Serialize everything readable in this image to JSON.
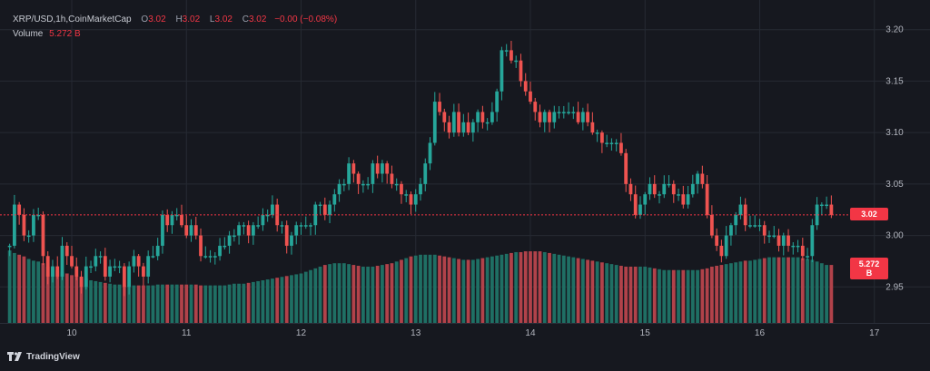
{
  "legend": {
    "symbol": "XRP/USD",
    "interval": "1h",
    "source": "CoinMarketCap",
    "open_key": "O",
    "open": "3.02",
    "high_key": "H",
    "high": "3.02",
    "low_key": "L",
    "low": "3.02",
    "close_key": "C",
    "close": "3.02",
    "change": "−0.00 (−0.08%)",
    "volume_label": "Volume",
    "volume_value": "5.272 B"
  },
  "price_tag": "3.02",
  "volume_tag": "5.272 B",
  "brand": "TradingView",
  "colors": {
    "up": "#26a69a",
    "down": "#ef5350",
    "vol_up": "#1f6f64",
    "vol_down": "#b1424a",
    "price_line": "#f23645",
    "grid": "#262a33",
    "background": "#16181f"
  },
  "chart_data": {
    "type": "candlestick",
    "title": "XRP/USD, 1h, CoinMarketCap",
    "x_tick_labels": [
      "10",
      "11",
      "12",
      "13",
      "14",
      "15",
      "16",
      "17"
    ],
    "y_tick_labels": [
      "3.20",
      "3.15",
      "3.10",
      "3.05",
      "3.00",
      "2.95"
    ],
    "y_ticks": [
      3.2,
      3.15,
      3.1,
      3.05,
      3.0,
      2.95
    ],
    "ylim": [
      2.915,
      3.22
    ],
    "last_price": 3.02,
    "last_volume": "5.272 B",
    "candles_per_day": 24,
    "day_label_offset": 13,
    "grid": true,
    "closes": [
      2.99,
      3.03,
      3.02,
      3.0,
      3.0,
      3.02,
      3.02,
      2.98,
      2.96,
      2.97,
      2.96,
      2.99,
      2.98,
      2.97,
      2.96,
      2.95,
      2.97,
      2.97,
      2.98,
      2.98,
      2.96,
      2.97,
      2.97,
      2.97,
      2.95,
      2.97,
      2.98,
      2.97,
      2.96,
      2.98,
      2.98,
      2.99,
      3.02,
      3.01,
      3.02,
      3.02,
      3.01,
      3.0,
      3.01,
      3.0,
      2.98,
      2.98,
      2.98,
      2.98,
      2.99,
      2.99,
      3.0,
      3.0,
      3.01,
      3.01,
      3.0,
      3.01,
      3.01,
      3.02,
      3.02,
      3.03,
      3.01,
      3.01,
      2.99,
      3.0,
      3.01,
      3.01,
      3.01,
      3.01,
      3.03,
      3.03,
      3.02,
      3.03,
      3.04,
      3.05,
      3.05,
      3.07,
      3.06,
      3.05,
      3.05,
      3.05,
      3.07,
      3.06,
      3.07,
      3.06,
      3.05,
      3.05,
      3.04,
      3.04,
      3.03,
      3.04,
      3.05,
      3.07,
      3.09,
      3.13,
      3.12,
      3.11,
      3.1,
      3.12,
      3.1,
      3.11,
      3.1,
      3.11,
      3.12,
      3.11,
      3.11,
      3.12,
      3.14,
      3.18,
      3.18,
      3.17,
      3.17,
      3.15,
      3.14,
      3.13,
      3.12,
      3.11,
      3.12,
      3.11,
      3.12,
      3.12,
      3.12,
      3.12,
      3.12,
      3.11,
      3.12,
      3.11,
      3.1,
      3.1,
      3.09,
      3.09,
      3.09,
      3.09,
      3.08,
      3.05,
      3.04,
      3.02,
      3.03,
      3.04,
      3.05,
      3.04,
      3.04,
      3.05,
      3.05,
      3.04,
      3.04,
      3.03,
      3.04,
      3.05,
      3.06,
      3.05,
      3.02,
      3.0,
      2.99,
      2.98,
      3.0,
      3.01,
      3.02,
      3.03,
      3.01,
      3.01,
      3.01,
      3.01,
      3.0,
      3.0,
      3.0,
      2.99,
      3.0,
      2.99,
      2.99,
      2.99,
      2.98,
      2.98,
      3.01,
      3.03,
      3.03,
      3.03,
      3.02
    ],
    "volume_relative": [
      0.85,
      0.82,
      0.8,
      0.78,
      0.75,
      0.73,
      0.72,
      0.7,
      0.66,
      0.64,
      0.62,
      0.6,
      0.58,
      0.56,
      0.55,
      0.53,
      0.52,
      0.5,
      0.49,
      0.48,
      0.47,
      0.46,
      0.45,
      0.45,
      0.44,
      0.44,
      0.44,
      0.44,
      0.44,
      0.44,
      0.44,
      0.45,
      0.45,
      0.45,
      0.45,
      0.45,
      0.45,
      0.45,
      0.45,
      0.45,
      0.44,
      0.44,
      0.44,
      0.44,
      0.44,
      0.44,
      0.45,
      0.46,
      0.46,
      0.46,
      0.47,
      0.48,
      0.49,
      0.5,
      0.51,
      0.52,
      0.53,
      0.54,
      0.55,
      0.56,
      0.57,
      0.58,
      0.6,
      0.62,
      0.64,
      0.66,
      0.68,
      0.69,
      0.7,
      0.7,
      0.7,
      0.69,
      0.68,
      0.67,
      0.66,
      0.66,
      0.66,
      0.67,
      0.68,
      0.69,
      0.7,
      0.72,
      0.74,
      0.76,
      0.78,
      0.79,
      0.8,
      0.8,
      0.8,
      0.8,
      0.79,
      0.78,
      0.77,
      0.76,
      0.75,
      0.74,
      0.74,
      0.74,
      0.75,
      0.76,
      0.77,
      0.78,
      0.79,
      0.8,
      0.81,
      0.82,
      0.83,
      0.83,
      0.84,
      0.84,
      0.84,
      0.84,
      0.83,
      0.82,
      0.81,
      0.8,
      0.79,
      0.78,
      0.77,
      0.76,
      0.75,
      0.74,
      0.73,
      0.72,
      0.71,
      0.7,
      0.69,
      0.68,
      0.67,
      0.66,
      0.66,
      0.66,
      0.66,
      0.66,
      0.65,
      0.64,
      0.63,
      0.62,
      0.62,
      0.62,
      0.62,
      0.62,
      0.62,
      0.62,
      0.62,
      0.63,
      0.64,
      0.66,
      0.67,
      0.68,
      0.69,
      0.7,
      0.71,
      0.72,
      0.73,
      0.73,
      0.74,
      0.75,
      0.76,
      0.77,
      0.77,
      0.77,
      0.77,
      0.77,
      0.77,
      0.77,
      0.76,
      0.75,
      0.74,
      0.72,
      0.7,
      0.68,
      0.68,
      0.67,
      0.67
    ]
  }
}
